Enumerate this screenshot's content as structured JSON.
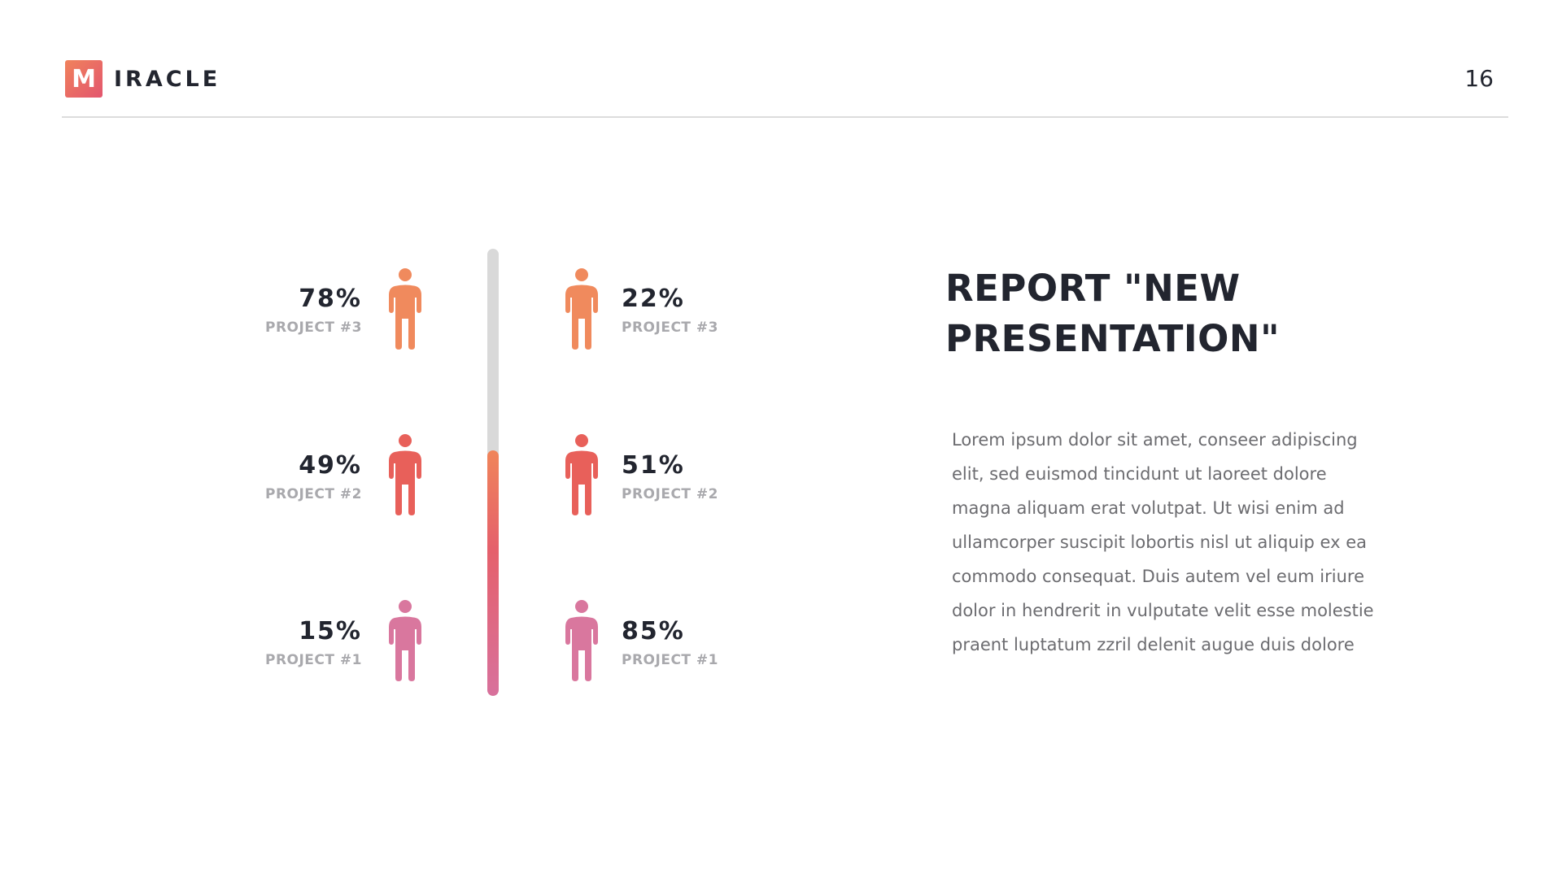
{
  "header": {
    "logo_letter": "M",
    "logo_text": "IRACLE",
    "page_number": "16"
  },
  "colors": {
    "orange": "#f08a5d",
    "red": "#e8605a",
    "pink": "#d9779e",
    "track": "#d9d9d9",
    "dark_text": "#22252f",
    "muted_text": "#a9a9ad"
  },
  "progress": {
    "fill_fraction": 0.55
  },
  "left_stats": [
    {
      "value": "78%",
      "label": "PROJECT #3",
      "icon": "person-icon",
      "color": "#f08a5d"
    },
    {
      "value": "49%",
      "label": "PROJECT #2",
      "icon": "person-icon",
      "color": "#e8605a"
    },
    {
      "value": "15%",
      "label": "PROJECT #1",
      "icon": "person-icon",
      "color": "#d9779e"
    }
  ],
  "right_stats": [
    {
      "value": "22%",
      "label": "PROJECT #3",
      "icon": "person-icon",
      "color": "#f08a5d"
    },
    {
      "value": "51%",
      "label": "PROJECT #2",
      "icon": "person-icon",
      "color": "#e8605a"
    },
    {
      "value": "85%",
      "label": "PROJECT #1",
      "icon": "person-icon",
      "color": "#d9779e"
    }
  ],
  "report": {
    "title_line1": "REPORT \"NEW",
    "title_line2": "PRESENTATION\"",
    "body": "Lorem ipsum dolor sit amet, conseer adipiscing elit, sed euismod tincidunt ut laoreet dolore magna aliquam erat volutpat. Ut wisi enim ad ullamcorper suscipit lobortis nisl ut aliquip ex ea commodo consequat. Duis autem vel eum iriure dolor in hendrerit in vulputate velit esse molestie praent luptatum zzril delenit augue duis dolore"
  }
}
